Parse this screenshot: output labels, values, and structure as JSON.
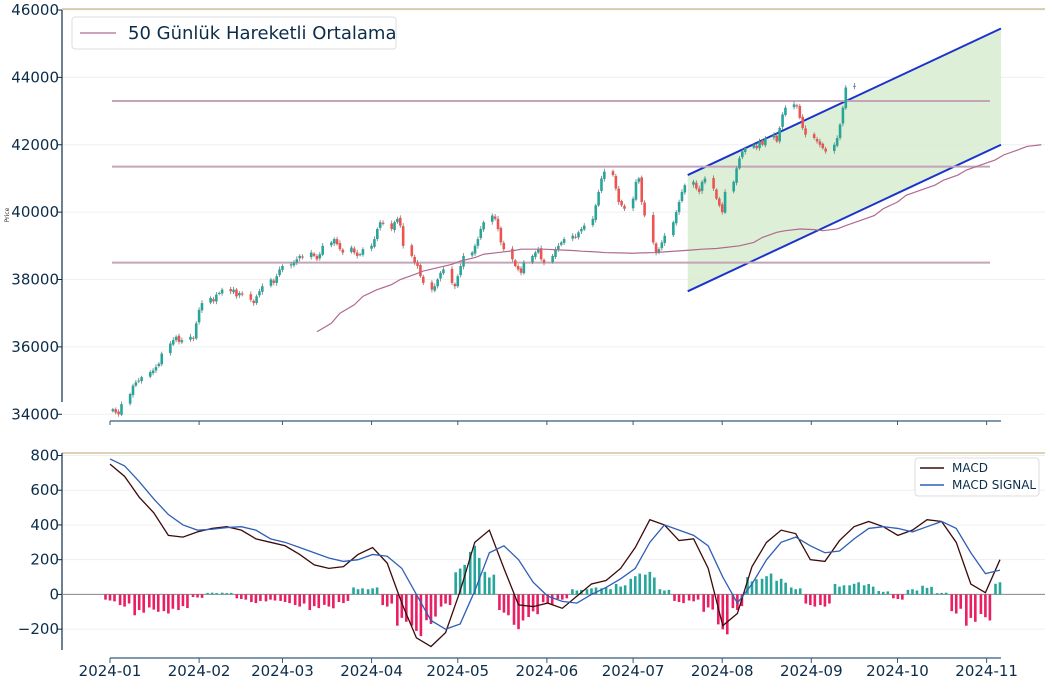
{
  "chart_data": [
    {
      "type": "candlestick",
      "ylabel": "Price",
      "ylim": [
        33800,
        46000
      ],
      "yticks": [
        "34000",
        "36000",
        "38000",
        "40000",
        "42000",
        "44000",
        "46000"
      ],
      "grid": true,
      "legend": {
        "position": "top-left",
        "entries": [
          "50 Günlük Hareketli Ortalama"
        ]
      },
      "horizontal_levels": [
        43300,
        41350,
        38500
      ],
      "channel": {
        "start": "2024-07-20",
        "end": "2024-11-06",
        "upper_start": 41100,
        "upper_end": 45450,
        "lower_start": 37650,
        "lower_end": 42000
      },
      "colors": {
        "up": "#26a69a",
        "down": "#ef5350",
        "ma": "#b06a90",
        "level": "#c4a5b8",
        "channel_line": "#1a33cc",
        "channel_fill": "#d8ecd0"
      },
      "closes_note": "daily closes from 2024-01-02 to 2024-11-05",
      "daily_closes": [
        34150,
        34050,
        34000,
        34300,
        34600,
        34850,
        34950,
        35000,
        35100,
        35250,
        35300,
        35400,
        35500,
        35800,
        36100,
        36200,
        36300,
        36150,
        36200,
        36300,
        36250,
        36700,
        37100,
        37300,
        37450,
        37350,
        37550,
        37600,
        37700,
        37650,
        37700,
        37500,
        37600,
        37550,
        37400,
        37300,
        37500,
        37650,
        37800,
        38000,
        37900,
        38100,
        38300,
        38400,
        38450,
        38500,
        38600,
        38700,
        38650,
        38800,
        38700,
        38600,
        38750,
        39000,
        39100,
        39200,
        39050,
        38900,
        38800,
        38950,
        38800,
        38700,
        38750,
        38900,
        39000,
        39200,
        39500,
        39700,
        39650,
        39500,
        39700,
        39800,
        39600,
        39000,
        38700,
        38500,
        38400,
        38100,
        37900,
        37700,
        37800,
        38000,
        38200,
        38300,
        37900,
        37800,
        38100,
        38400,
        38700,
        38800,
        39000,
        39200,
        39500,
        39700,
        39900,
        39800,
        39500,
        39100,
        38900,
        38600,
        38400,
        38300,
        38200,
        38500,
        38700,
        38800,
        38900,
        38600,
        38500,
        38700,
        38900,
        39000,
        39100,
        39200,
        39300,
        39250,
        39400,
        39500,
        39600,
        39800,
        40200,
        40600,
        41000,
        41200,
        41100,
        40700,
        40300,
        40200,
        40100,
        40400,
        40900,
        41000,
        40300,
        39900,
        39100,
        38800,
        38900,
        39100,
        39300,
        39700,
        40000,
        40300,
        40600,
        40800,
        40900,
        40700,
        40600,
        40900,
        41000,
        40700,
        40400,
        40200,
        40000,
        40600,
        40900,
        41300,
        41600,
        41800,
        41900,
        42000,
        41900,
        42100,
        42000,
        42200,
        42300,
        42100,
        42500,
        42900,
        43100,
        43200,
        43150,
        42800,
        42500,
        42300,
        42200,
        42100,
        42000,
        41900,
        41800,
        42000,
        42200,
        42600,
        43100,
        43700,
        43750
      ],
      "ma50_note": "approximate 50-day moving average values from 2024-03-13",
      "ma50": [
        36450,
        36700,
        37000,
        37250,
        37500,
        37700,
        37850,
        38000,
        38150,
        38250,
        38350,
        38450,
        38550,
        38650,
        38750,
        38800,
        38850,
        38900,
        38900,
        38900,
        38880,
        38860,
        38840,
        38820,
        38800,
        38790,
        38780,
        38790,
        38800,
        38820,
        38850,
        38880,
        38900,
        38920,
        38950,
        39000,
        39100,
        39250,
        39400,
        39450,
        39500,
        39480,
        39450,
        39500,
        39600,
        39750,
        39900,
        40100,
        40300,
        40500,
        40650,
        40800,
        40950,
        41100,
        41250,
        41400,
        41550,
        41700,
        41850,
        41950,
        42000
      ]
    },
    {
      "type": "line+bar",
      "ylim": [
        -320,
        820
      ],
      "yticks": [
        "−200",
        "0",
        "200",
        "400",
        "600",
        "800"
      ],
      "xticks": [
        "2024-01",
        "2024-02",
        "2024-03",
        "2024-04",
        "2024-05",
        "2024-06",
        "2024-07",
        "2024-08",
        "2024-09",
        "2024-10",
        "2024-11"
      ],
      "legend": {
        "position": "top-right"
      },
      "series": [
        {
          "name": "MACD",
          "color": "#3d0a0a",
          "values": [
            750,
            680,
            560,
            470,
            340,
            330,
            360,
            380,
            390,
            370,
            320,
            300,
            280,
            230,
            170,
            150,
            160,
            230,
            270,
            180,
            -50,
            -250,
            -300,
            -220,
            20,
            300,
            370,
            150,
            -60,
            -70,
            -50,
            -80,
            -10,
            60,
            80,
            150,
            270,
            430,
            400,
            310,
            320,
            150,
            -180,
            -110,
            160,
            300,
            370,
            350,
            200,
            190,
            310,
            390,
            420,
            390,
            340,
            370,
            430,
            420,
            300,
            60,
            10,
            200
          ]
        },
        {
          "name": "MACD SIGNAL",
          "color": "#2f5fb8",
          "values": [
            780,
            740,
            650,
            550,
            460,
            400,
            370,
            375,
            385,
            390,
            370,
            320,
            300,
            270,
            240,
            210,
            190,
            200,
            230,
            220,
            150,
            0,
            -150,
            -200,
            -170,
            20,
            240,
            280,
            200,
            70,
            -10,
            -40,
            -50,
            0,
            40,
            90,
            150,
            300,
            400,
            370,
            340,
            280,
            100,
            -50,
            60,
            200,
            300,
            330,
            280,
            240,
            250,
            320,
            380,
            390,
            380,
            360,
            390,
            420,
            380,
            240,
            120,
            140
          ]
        }
      ],
      "histogram": {
        "up_color": "#26a69a",
        "down_color": "#e91e63",
        "values": [
          -40,
          -70,
          -120,
          -100,
          -110,
          -90,
          -20,
          10,
          10,
          -30,
          -50,
          -40,
          -50,
          -70,
          -90,
          -80,
          -50,
          40,
          40,
          -70,
          -180,
          -240,
          -170,
          -70,
          170,
          280,
          130,
          -120,
          -200,
          -130,
          -60,
          -30,
          30,
          40,
          40,
          60,
          120,
          130,
          30,
          -50,
          -40,
          -100,
          -230,
          -90,
          100,
          120,
          90,
          40,
          -70,
          -70,
          60,
          70,
          60,
          20,
          -30,
          30,
          50,
          10,
          -110,
          -180,
          -150,
          70
        ]
      }
    }
  ]
}
